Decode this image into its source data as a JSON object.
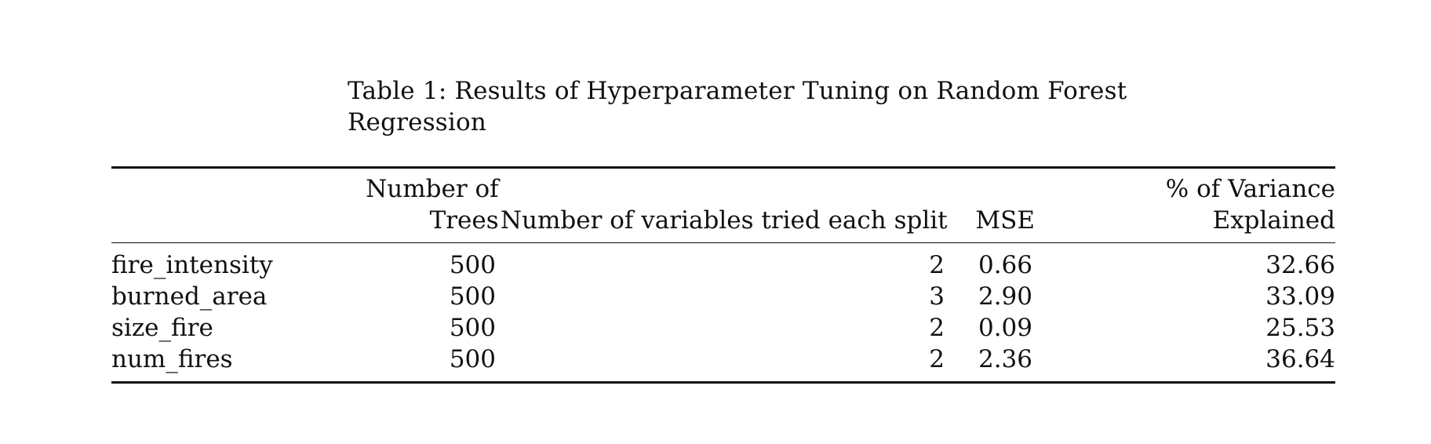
{
  "caption": {
    "line1": "Table 1:  Results of Hyperparameter Tuning on Random Forest",
    "line2": "Regression"
  },
  "table": {
    "headers": [
      {
        "line1": "",
        "line2": ""
      },
      {
        "line1": "Number of",
        "line2": "Trees"
      },
      {
        "line1": "",
        "line2": "Number of variables tried each split"
      },
      {
        "line1": "",
        "line2": "MSE"
      },
      {
        "line1": "% of Variance",
        "line2": "Explained"
      }
    ],
    "rows": [
      [
        "fire_intensity",
        "500",
        "2",
        "0.66",
        "32.66"
      ],
      [
        "burned_area",
        "500",
        "3",
        "2.90",
        "33.09"
      ],
      [
        "size_fire",
        "500",
        "2",
        "0.09",
        "25.53"
      ],
      [
        "num_fires",
        "500",
        "2",
        "2.36",
        "36.64"
      ]
    ]
  }
}
